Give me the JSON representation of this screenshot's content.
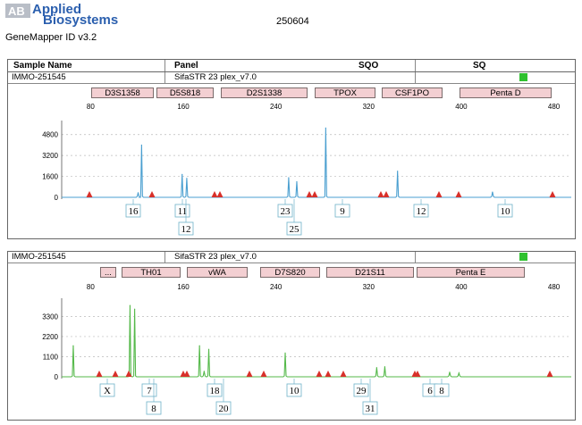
{
  "header": {
    "brand_line1": "Applied",
    "brand_line2": "Biosystems",
    "app_name": "GeneMapper ID v3.2",
    "run_id": "250604"
  },
  "table_header": {
    "sample_name": "Sample Name",
    "panel": "Panel",
    "sqo": "SQO",
    "sq": "SQ"
  },
  "panels": [
    {
      "sample": "IMMO-251545",
      "panel": "SifaSTR 23 plex_v7.0",
      "color": "#4a9fd0",
      "loci": [
        "D3S1358",
        "D5S818",
        "D2S1338",
        "TPOX",
        "CSF1PO",
        "Penta D"
      ],
      "x_ticks": [
        "80",
        "160",
        "240",
        "320",
        "400",
        "480"
      ],
      "y_ticks": [
        "4800",
        "3200",
        "1600",
        "0"
      ],
      "alleles_top": [
        "16",
        "11",
        "23",
        "9",
        "12",
        "10"
      ],
      "alleles_bottom": [
        "12",
        "25"
      ]
    },
    {
      "sample": "IMMO-251545",
      "panel": "SifaSTR 23 plex_v7.0",
      "color": "#55b94a",
      "loci": [
        "...",
        "TH01",
        "vWA",
        "D7S820",
        "D21S11",
        "Penta E"
      ],
      "x_ticks": [
        "80",
        "160",
        "240",
        "320",
        "400",
        "480"
      ],
      "y_ticks": [
        "3300",
        "2200",
        "1100",
        "0"
      ],
      "alleles_top": [
        "X",
        "7",
        "18",
        "10",
        "29",
        "6",
        "8"
      ],
      "alleles_bottom": [
        "8",
        "20",
        "31"
      ]
    }
  ],
  "chart_data": [
    {
      "type": "line",
      "title": "",
      "xlabel": "",
      "ylabel": "",
      "xlim": [
        55,
        495
      ],
      "ylim": [
        -150,
        5600
      ],
      "series": [
        {
          "peaks": [
            {
              "x": 121,
              "h": 350
            },
            {
              "x": 124,
              "h": 4000
            },
            {
              "x": 159,
              "h": 1750
            },
            {
              "x": 163,
              "h": 1450
            },
            {
              "x": 251,
              "h": 1500
            },
            {
              "x": 258,
              "h": 1200
            },
            {
              "x": 283,
              "h": 5300
            },
            {
              "x": 345,
              "h": 2000
            },
            {
              "x": 427,
              "h": 400
            }
          ]
        }
      ]
    },
    {
      "type": "line",
      "title": "",
      "xlabel": "",
      "ylabel": "",
      "xlim": [
        55,
        495
      ],
      "ylim": [
        -120,
        4100
      ],
      "series": [
        {
          "peaks": [
            {
              "x": 65,
              "h": 1700
            },
            {
              "x": 114,
              "h": 3900
            },
            {
              "x": 118,
              "h": 3700
            },
            {
              "x": 174,
              "h": 1700
            },
            {
              "x": 178,
              "h": 300
            },
            {
              "x": 182,
              "h": 1500
            },
            {
              "x": 248,
              "h": 1300
            },
            {
              "x": 327,
              "h": 500
            },
            {
              "x": 334,
              "h": 550
            },
            {
              "x": 390,
              "h": 250
            },
            {
              "x": 398,
              "h": 200
            }
          ]
        }
      ]
    }
  ]
}
